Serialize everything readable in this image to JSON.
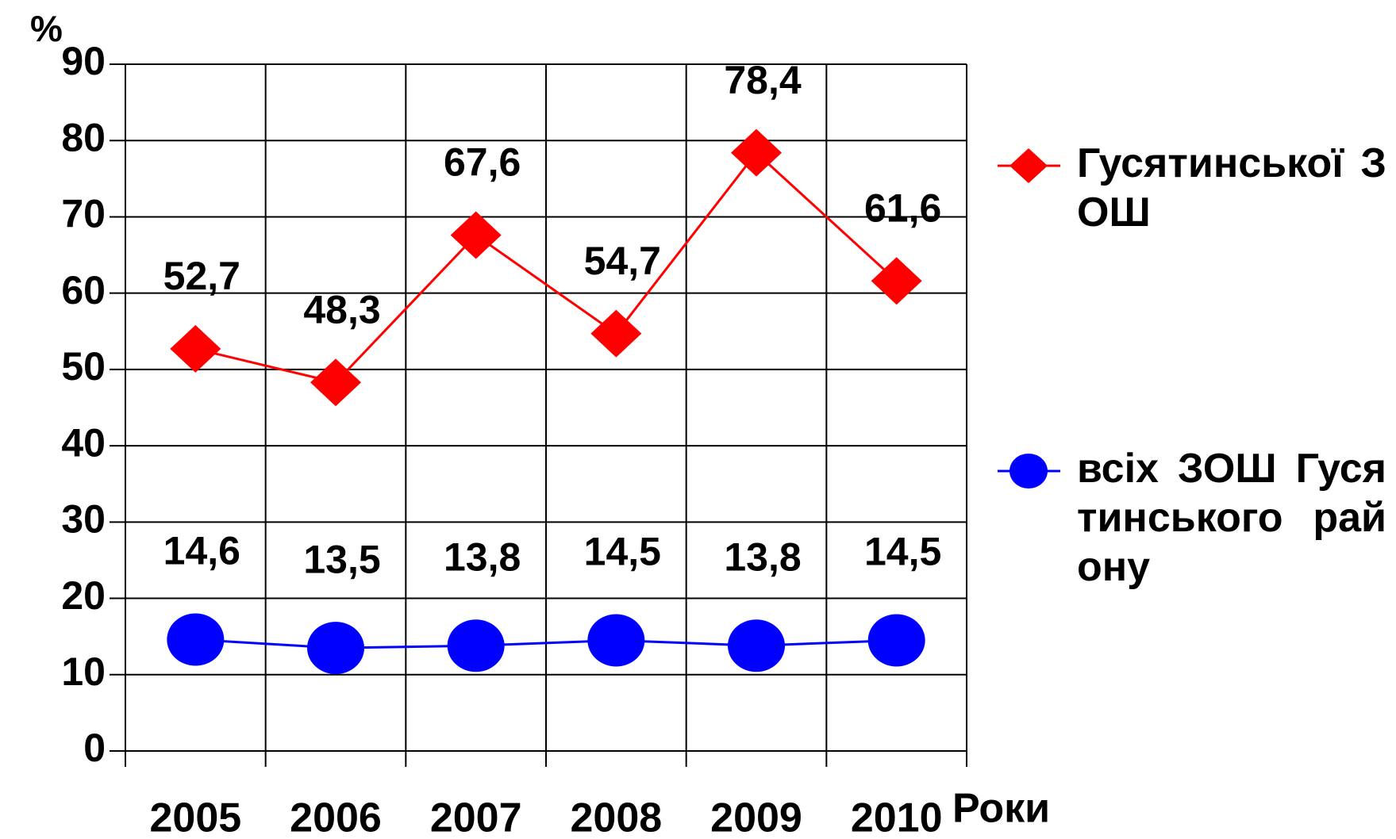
{
  "chart_data": {
    "type": "line",
    "y_label": "%",
    "x_label": "Роки",
    "categories": [
      "2005",
      "2006",
      "2007",
      "2008",
      "2009",
      "2010"
    ],
    "series": [
      {
        "name": "Гусятинської ЗОШ",
        "color": "#ff0000",
        "marker": "diamond",
        "values": [
          52.7,
          48.3,
          67.6,
          54.7,
          78.4,
          61.6
        ],
        "value_labels": [
          "52,7",
          "48,3",
          "67,6",
          "54,7",
          "78,4",
          "61,6"
        ]
      },
      {
        "name": "всіх ЗОШ Гусятинського району",
        "color": "#0000ff",
        "marker": "circle",
        "values": [
          14.6,
          13.5,
          13.8,
          14.5,
          13.8,
          14.5
        ],
        "value_labels": [
          "14,6",
          "13,5",
          "13,8",
          "14,5",
          "13,8",
          "14,5"
        ]
      }
    ],
    "ylim": [
      0,
      90
    ],
    "yticks": [
      0,
      10,
      20,
      30,
      40,
      50,
      60,
      70,
      80,
      90
    ],
    "grid": true,
    "legend": "right"
  }
}
